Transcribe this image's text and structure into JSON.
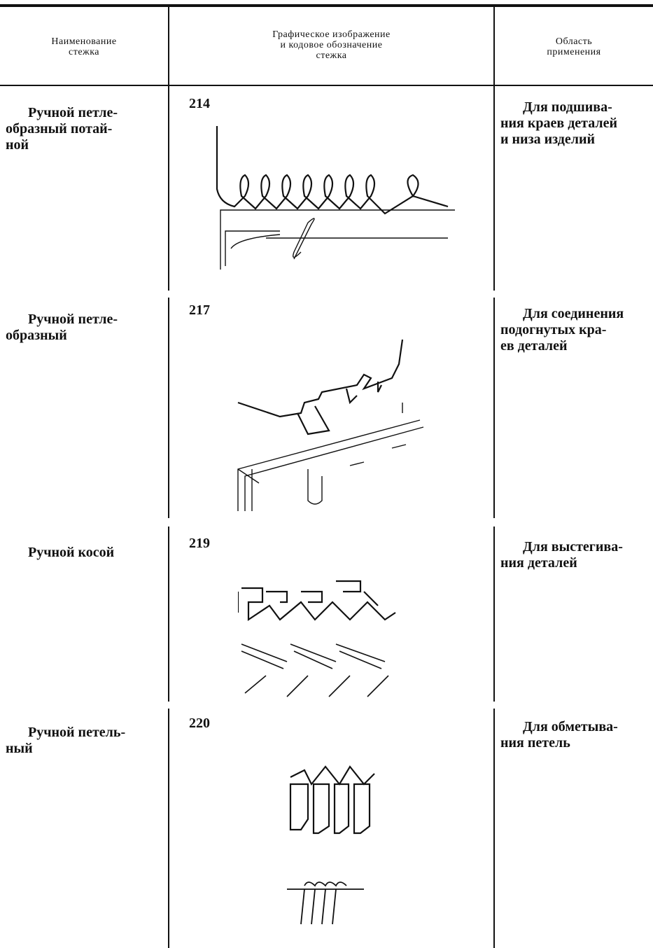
{
  "header": {
    "name": [
      "Наименование",
      "стежка"
    ],
    "image": [
      "Графическое изображение",
      "и кодовое обозначение",
      "стежка"
    ],
    "usage": [
      "Область",
      "применения"
    ]
  },
  "rows": [
    {
      "name": [
        "Ручной петле-",
        "образный потай-",
        "ной"
      ],
      "code": "214",
      "usage": [
        "Для подшива-",
        "ния краев деталей",
        "и низа изделий"
      ]
    },
    {
      "name": [
        "Ручной петле-",
        "образный"
      ],
      "code": "217",
      "usage": [
        "Для соединения",
        "подогнутых кра-",
        "ев деталей"
      ]
    },
    {
      "name": [
        "Ручной косой"
      ],
      "code": "219",
      "usage": [
        "Для выстегива-",
        "ния деталей"
      ]
    },
    {
      "name": [
        "Ручной петель-",
        "ный"
      ],
      "code": "220",
      "usage": [
        "Для обметыва-",
        "ния петель"
      ]
    }
  ]
}
